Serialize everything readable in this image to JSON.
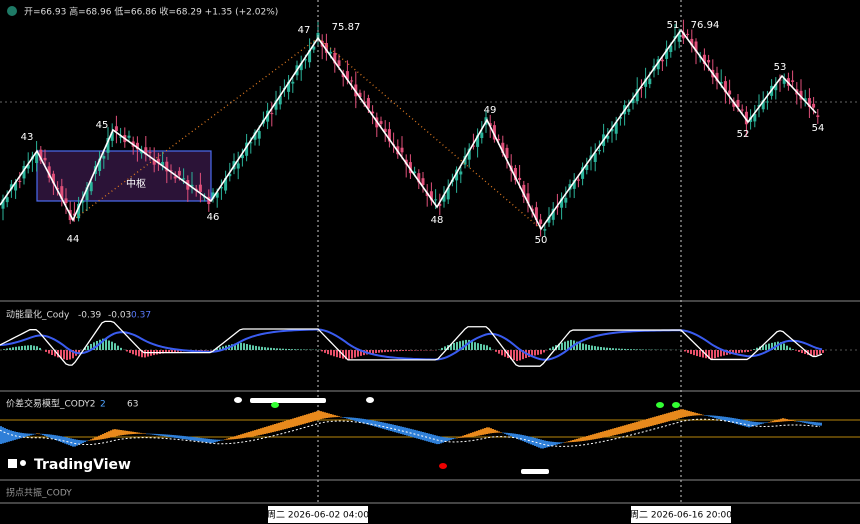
{
  "header": {
    "ohlc": "开=66.93 高=68.96 低=66.86 收=68.29 +1.35 (+2.02%)"
  },
  "waves": [
    {
      "label": "43"
    },
    {
      "label": "44"
    },
    {
      "label": "45"
    },
    {
      "label": "46"
    },
    {
      "label": "47",
      "price": "75.87"
    },
    {
      "label": "48"
    },
    {
      "label": "49"
    },
    {
      "label": "50"
    },
    {
      "label": "51",
      "price": "76.94"
    },
    {
      "label": "52"
    },
    {
      "label": "53"
    },
    {
      "label": "54"
    }
  ],
  "zone": "中枢",
  "panels": [
    {
      "name": "动能量化_Cody",
      "values": [
        "-0.39",
        "-0.03",
        "0.37"
      ]
    },
    {
      "name": "价差交易模型_CODY2",
      "values": [
        "2",
        "63"
      ]
    },
    {
      "name": "拐点共振_CODY"
    }
  ],
  "brand": "TradingView",
  "time_labels": [
    "周二 2026-06-02   04:00",
    "周二 2026-06-16   20:00"
  ]
}
